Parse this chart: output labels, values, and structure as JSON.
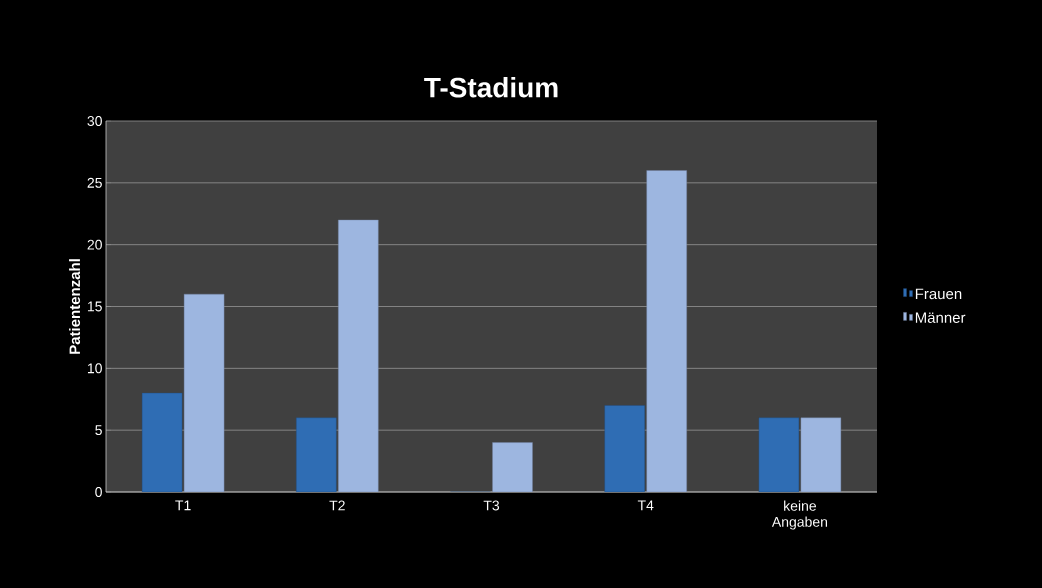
{
  "chart_data": {
    "type": "bar",
    "title": "T-Stadium",
    "ylabel": "Patientenzahl",
    "categories": [
      "T1",
      "T2",
      "T3",
      "T4",
      "keine Angaben"
    ],
    "series": [
      {
        "name": "Frauen",
        "color": "#2f6db4",
        "values": [
          8,
          6,
          0,
          7,
          6
        ]
      },
      {
        "name": "Männer",
        "color": "#9db6e0",
        "values": [
          16,
          22,
          4,
          26,
          6
        ]
      }
    ],
    "ylim": [
      0,
      30
    ],
    "yticks": [
      0,
      5,
      10,
      15,
      20,
      25,
      30
    ],
    "grid": "y",
    "legend": "right"
  }
}
